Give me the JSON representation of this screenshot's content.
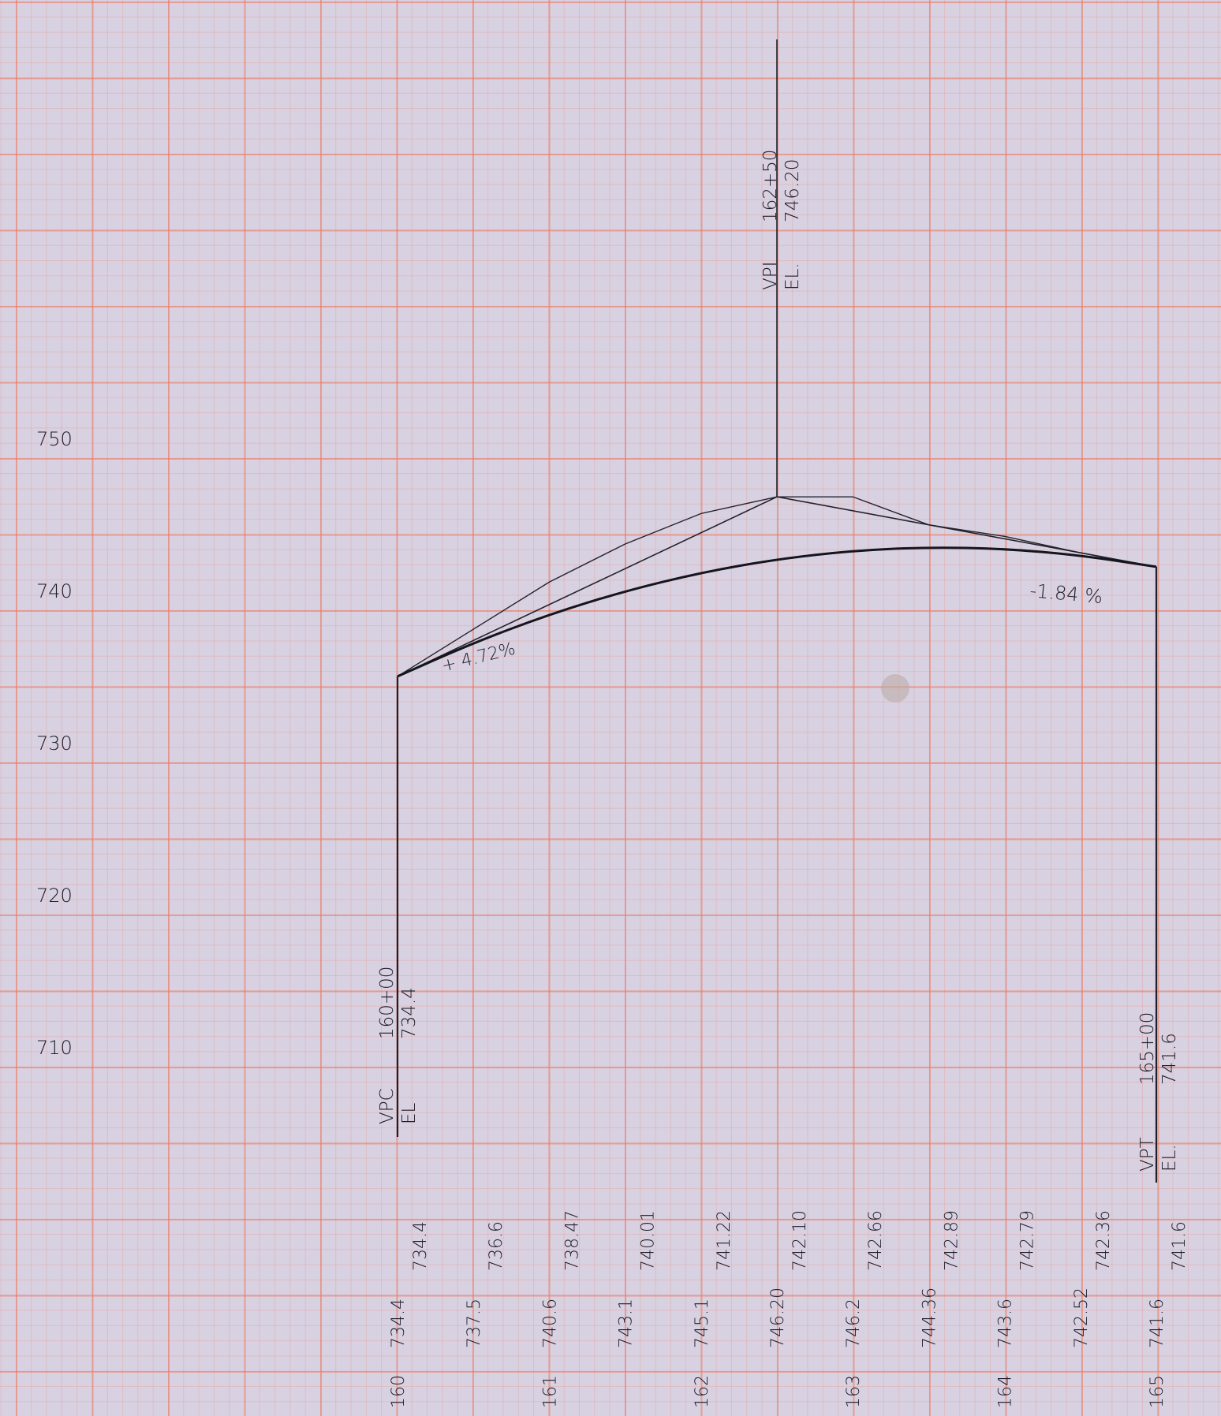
{
  "chart_data": {
    "type": "line",
    "title": "",
    "xlabel": "",
    "ylabel": "",
    "ylim": [
      705,
      775
    ],
    "xlim": [
      160,
      165
    ],
    "y_ticks": [
      "710",
      "720",
      "730",
      "740",
      "750"
    ],
    "station_ticks": [
      {
        "x": 160,
        "label": "160"
      },
      {
        "x": 161,
        "label": "161"
      },
      {
        "x": 162,
        "label": "162"
      },
      {
        "x": 163,
        "label": "163"
      },
      {
        "x": 164,
        "label": "164"
      },
      {
        "x": 165,
        "label": "165"
      }
    ],
    "tangent_column": [
      "734.4",
      "737.5",
      "740.6",
      "743.1",
      "745.1",
      "746.20",
      "746.2",
      "744.36",
      "743.6",
      "742.52",
      "741.6"
    ],
    "curve_column": [
      "734.4",
      "736.6",
      "738.47",
      "740.01",
      "741.22",
      "742.10",
      "742.66",
      "742.89",
      "742.79",
      "742.36",
      "741.6"
    ],
    "series": [
      {
        "x": [
          160,
          162.5,
          165
        ],
        "values": [
          734.4,
          746.2,
          741.6
        ]
      },
      {
        "x": [
          160,
          160.5,
          161,
          161.5,
          162,
          162.5,
          163,
          163.5,
          164,
          164.5,
          165
        ],
        "values": [
          734.4,
          737.5,
          740.6,
          743.1,
          745.1,
          746.2,
          746.2,
          744.36,
          743.6,
          742.52,
          741.6
        ]
      },
      {
        "x": [
          160,
          160.5,
          161,
          161.5,
          162,
          162.5,
          163,
          163.5,
          164,
          164.5,
          165
        ],
        "values": [
          734.4,
          736.6,
          738.47,
          740.01,
          741.22,
          742.1,
          742.66,
          742.89,
          742.79,
          742.36,
          741.6
        ]
      }
    ],
    "grades": {
      "incoming": "+ 4.72%",
      "outgoing": "-1.84 %"
    },
    "points": {
      "vpc": {
        "x": 160,
        "y": 734.4,
        "label": "VPC",
        "el_label": "EL",
        "station": "160+00",
        "elevation": "734.4"
      },
      "vpi": {
        "x": 162.5,
        "y": 746.2,
        "label": "VPI",
        "el_label": "EL.",
        "station": "162+50",
        "elevation": "746.20"
      },
      "vpt": {
        "x": 165,
        "y": 741.6,
        "label": "VPT",
        "el_label": "EL.",
        "station": "165+00",
        "elevation": "741.6"
      }
    },
    "grid": true,
    "legend": "none"
  }
}
